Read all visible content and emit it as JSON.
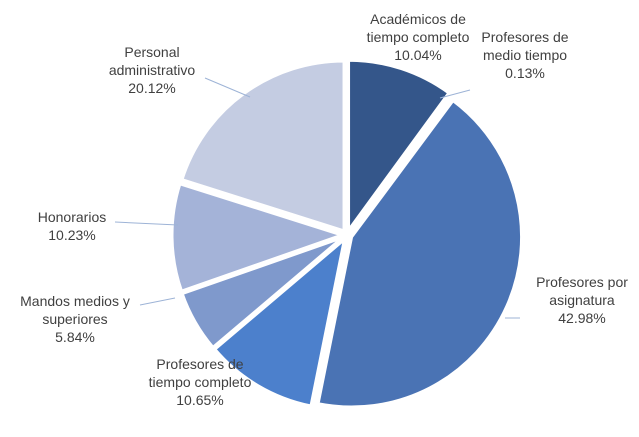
{
  "chart_data": {
    "type": "pie",
    "categories": [
      "Académicos de tiempo completo",
      "Profesores de medio tiempo",
      "Profesores por asignatura",
      "Profesores de tiempo completo",
      "Mandos medios y superiores",
      "Honorarios",
      "Personal administrativo"
    ],
    "values": [
      10.04,
      0.13,
      42.98,
      10.65,
      5.84,
      10.23,
      20.12
    ],
    "value_labels": [
      "10.04%",
      "0.13%",
      "42.98%",
      "10.65%",
      "5.84%",
      "10.23%",
      "20.12%"
    ],
    "colors": [
      "#34568a",
      "#3d5f96",
      "#4a73b4",
      "#4c80cc",
      "#7f99cc",
      "#a4b3d8",
      "#c4cce2"
    ]
  }
}
